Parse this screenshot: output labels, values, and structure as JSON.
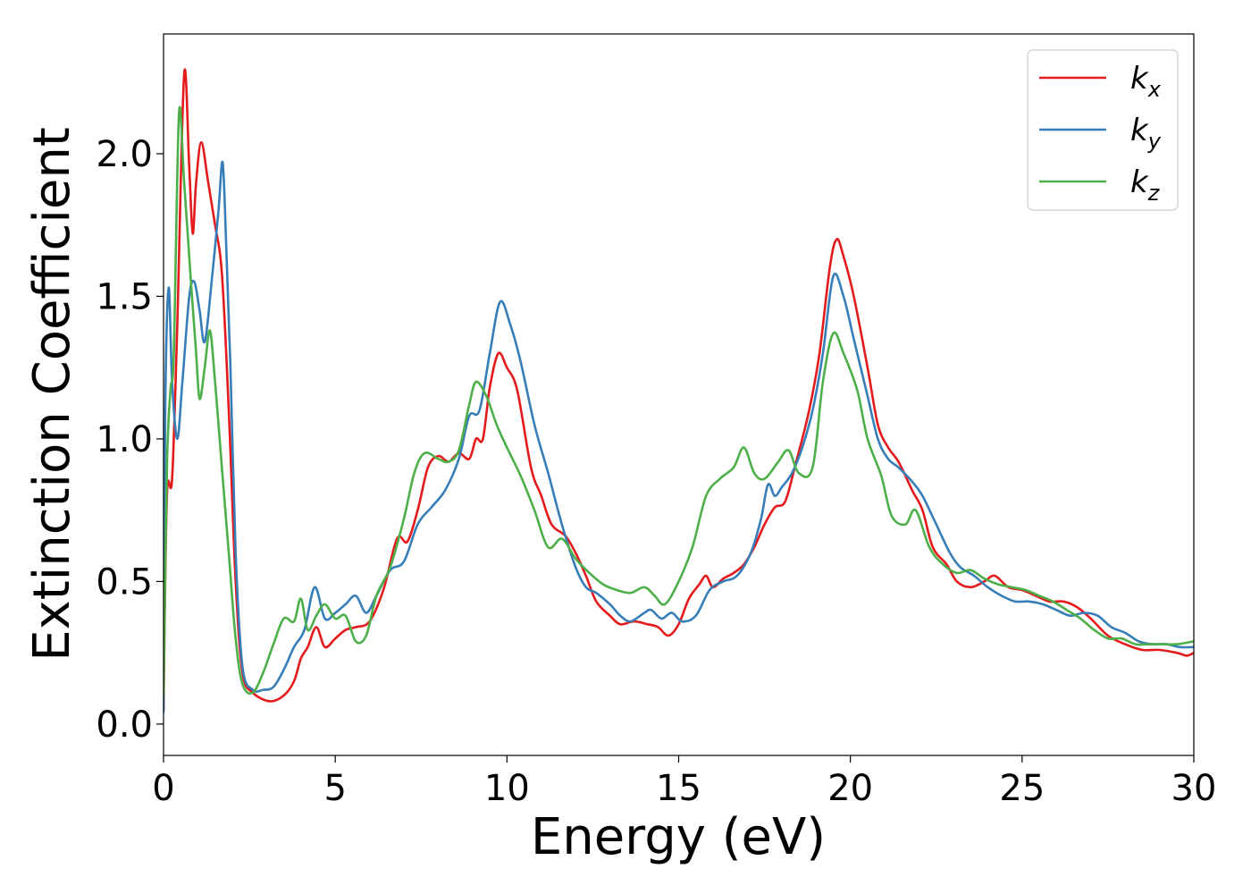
{
  "chart_data": {
    "type": "line",
    "title": "",
    "xlabel": "Energy (eV)",
    "ylabel": "Extinction Coefficient",
    "xlim": [
      0,
      30
    ],
    "ylim": [
      -0.11,
      2.42
    ],
    "xticks": [
      0,
      5,
      10,
      15,
      20,
      25,
      30
    ],
    "xtick_labels": [
      "0",
      "5",
      "10",
      "15",
      "20",
      "25",
      "30"
    ],
    "yticks": [
      0.0,
      0.5,
      1.0,
      1.5,
      2.0
    ],
    "ytick_labels": [
      "0.0",
      "0.5",
      "1.0",
      "1.5",
      "2.0"
    ],
    "grid": false,
    "legend_position": "top-right",
    "series": [
      {
        "name": "k",
        "subscript": "x",
        "color": "#e41a1c",
        "points": [
          [
            0,
            0.05
          ],
          [
            0.1,
            0.8
          ],
          [
            0.25,
            0.86
          ],
          [
            0.4,
            1.4
          ],
          [
            0.6,
            2.28
          ],
          [
            0.75,
            1.95
          ],
          [
            0.85,
            1.72
          ],
          [
            0.95,
            1.9
          ],
          [
            1.1,
            2.04
          ],
          [
            1.3,
            1.9
          ],
          [
            1.5,
            1.75
          ],
          [
            1.7,
            1.58
          ],
          [
            1.9,
            1.1
          ],
          [
            2.1,
            0.5
          ],
          [
            2.3,
            0.18
          ],
          [
            2.6,
            0.11
          ],
          [
            3.1,
            0.08
          ],
          [
            3.5,
            0.1
          ],
          [
            3.8,
            0.15
          ],
          [
            4.0,
            0.23
          ],
          [
            4.2,
            0.27
          ],
          [
            4.45,
            0.34
          ],
          [
            4.7,
            0.27
          ],
          [
            5.0,
            0.3
          ],
          [
            5.3,
            0.33
          ],
          [
            5.6,
            0.34
          ],
          [
            6.0,
            0.36
          ],
          [
            6.4,
            0.47
          ],
          [
            6.8,
            0.65
          ],
          [
            7.1,
            0.64
          ],
          [
            7.4,
            0.75
          ],
          [
            7.7,
            0.9
          ],
          [
            8.0,
            0.94
          ],
          [
            8.3,
            0.92
          ],
          [
            8.6,
            0.95
          ],
          [
            8.9,
            0.93
          ],
          [
            9.1,
            1.0
          ],
          [
            9.3,
            1.0
          ],
          [
            9.5,
            1.18
          ],
          [
            9.75,
            1.3
          ],
          [
            10.0,
            1.25
          ],
          [
            10.3,
            1.17
          ],
          [
            10.7,
            0.9
          ],
          [
            11.0,
            0.8
          ],
          [
            11.3,
            0.7
          ],
          [
            11.7,
            0.66
          ],
          [
            12.0,
            0.6
          ],
          [
            12.3,
            0.52
          ],
          [
            12.6,
            0.43
          ],
          [
            13.0,
            0.38
          ],
          [
            13.3,
            0.35
          ],
          [
            13.7,
            0.36
          ],
          [
            14.1,
            0.35
          ],
          [
            14.4,
            0.34
          ],
          [
            14.7,
            0.31
          ],
          [
            15.0,
            0.35
          ],
          [
            15.3,
            0.44
          ],
          [
            15.6,
            0.49
          ],
          [
            15.8,
            0.52
          ],
          [
            16.0,
            0.48
          ],
          [
            16.3,
            0.51
          ],
          [
            16.6,
            0.53
          ],
          [
            16.9,
            0.56
          ],
          [
            17.2,
            0.62
          ],
          [
            17.5,
            0.7
          ],
          [
            17.8,
            0.76
          ],
          [
            18.1,
            0.78
          ],
          [
            18.4,
            0.91
          ],
          [
            18.8,
            1.1
          ],
          [
            19.1,
            1.3
          ],
          [
            19.4,
            1.6
          ],
          [
            19.6,
            1.7
          ],
          [
            19.8,
            1.64
          ],
          [
            20.1,
            1.5
          ],
          [
            20.5,
            1.25
          ],
          [
            20.8,
            1.05
          ],
          [
            21.1,
            0.97
          ],
          [
            21.4,
            0.92
          ],
          [
            21.8,
            0.82
          ],
          [
            22.1,
            0.75
          ],
          [
            22.4,
            0.62
          ],
          [
            22.8,
            0.56
          ],
          [
            23.1,
            0.5
          ],
          [
            23.5,
            0.48
          ],
          [
            23.9,
            0.5
          ],
          [
            24.2,
            0.52
          ],
          [
            24.6,
            0.48
          ],
          [
            25.0,
            0.47
          ],
          [
            25.4,
            0.45
          ],
          [
            25.8,
            0.43
          ],
          [
            26.2,
            0.43
          ],
          [
            26.6,
            0.41
          ],
          [
            27.0,
            0.37
          ],
          [
            27.5,
            0.31
          ],
          [
            28.0,
            0.28
          ],
          [
            28.5,
            0.26
          ],
          [
            29.0,
            0.26
          ],
          [
            29.5,
            0.25
          ],
          [
            29.8,
            0.24
          ],
          [
            30.0,
            0.25
          ]
        ]
      },
      {
        "name": "k",
        "subscript": "y",
        "color": "#377eb8",
        "points": [
          [
            0,
            0.04
          ],
          [
            0.05,
            1.1
          ],
          [
            0.15,
            1.53
          ],
          [
            0.25,
            1.2
          ],
          [
            0.4,
            1.0
          ],
          [
            0.55,
            1.2
          ],
          [
            0.75,
            1.5
          ],
          [
            0.9,
            1.55
          ],
          [
            1.05,
            1.45
          ],
          [
            1.2,
            1.34
          ],
          [
            1.4,
            1.55
          ],
          [
            1.6,
            1.8
          ],
          [
            1.72,
            1.97
          ],
          [
            1.82,
            1.7
          ],
          [
            1.95,
            1.25
          ],
          [
            2.1,
            0.6
          ],
          [
            2.3,
            0.2
          ],
          [
            2.6,
            0.12
          ],
          [
            2.9,
            0.12
          ],
          [
            3.2,
            0.13
          ],
          [
            3.5,
            0.19
          ],
          [
            3.8,
            0.27
          ],
          [
            4.1,
            0.33
          ],
          [
            4.4,
            0.48
          ],
          [
            4.7,
            0.37
          ],
          [
            5.0,
            0.39
          ],
          [
            5.3,
            0.42
          ],
          [
            5.6,
            0.45
          ],
          [
            5.9,
            0.39
          ],
          [
            6.2,
            0.45
          ],
          [
            6.6,
            0.54
          ],
          [
            7.0,
            0.57
          ],
          [
            7.4,
            0.7
          ],
          [
            7.8,
            0.76
          ],
          [
            8.2,
            0.82
          ],
          [
            8.6,
            0.93
          ],
          [
            8.9,
            1.08
          ],
          [
            9.2,
            1.1
          ],
          [
            9.5,
            1.3
          ],
          [
            9.8,
            1.48
          ],
          [
            10.1,
            1.4
          ],
          [
            10.4,
            1.27
          ],
          [
            10.8,
            1.05
          ],
          [
            11.2,
            0.88
          ],
          [
            11.6,
            0.7
          ],
          [
            12.0,
            0.55
          ],
          [
            12.3,
            0.48
          ],
          [
            12.6,
            0.46
          ],
          [
            13.0,
            0.42
          ],
          [
            13.3,
            0.38
          ],
          [
            13.6,
            0.36
          ],
          [
            14.0,
            0.39
          ],
          [
            14.2,
            0.4
          ],
          [
            14.5,
            0.37
          ],
          [
            14.8,
            0.39
          ],
          [
            15.1,
            0.36
          ],
          [
            15.5,
            0.38
          ],
          [
            15.9,
            0.47
          ],
          [
            16.3,
            0.5
          ],
          [
            16.7,
            0.52
          ],
          [
            17.1,
            0.6
          ],
          [
            17.4,
            0.72
          ],
          [
            17.6,
            0.84
          ],
          [
            17.8,
            0.8
          ],
          [
            18.0,
            0.83
          ],
          [
            18.3,
            0.88
          ],
          [
            18.6,
            0.97
          ],
          [
            18.9,
            1.1
          ],
          [
            19.2,
            1.3
          ],
          [
            19.5,
            1.57
          ],
          [
            19.8,
            1.5
          ],
          [
            20.1,
            1.35
          ],
          [
            20.5,
            1.15
          ],
          [
            20.8,
            1.0
          ],
          [
            21.1,
            0.93
          ],
          [
            21.4,
            0.9
          ],
          [
            21.8,
            0.85
          ],
          [
            22.1,
            0.8
          ],
          [
            22.5,
            0.7
          ],
          [
            22.9,
            0.6
          ],
          [
            23.2,
            0.55
          ],
          [
            23.6,
            0.52
          ],
          [
            24.0,
            0.48
          ],
          [
            24.4,
            0.45
          ],
          [
            24.8,
            0.43
          ],
          [
            25.2,
            0.43
          ],
          [
            25.6,
            0.42
          ],
          [
            26.0,
            0.4
          ],
          [
            26.4,
            0.38
          ],
          [
            26.8,
            0.39
          ],
          [
            27.2,
            0.38
          ],
          [
            27.6,
            0.34
          ],
          [
            28.0,
            0.32
          ],
          [
            28.4,
            0.29
          ],
          [
            28.8,
            0.28
          ],
          [
            29.2,
            0.28
          ],
          [
            29.6,
            0.27
          ],
          [
            30.0,
            0.27
          ]
        ]
      },
      {
        "name": "k",
        "subscript": "z",
        "color": "#4daf4a",
        "points": [
          [
            0,
            0.1
          ],
          [
            0.1,
            0.9
          ],
          [
            0.2,
            1.17
          ],
          [
            0.3,
            1.3
          ],
          [
            0.45,
            2.14
          ],
          [
            0.6,
            1.9
          ],
          [
            0.8,
            1.55
          ],
          [
            0.95,
            1.3
          ],
          [
            1.05,
            1.14
          ],
          [
            1.2,
            1.25
          ],
          [
            1.35,
            1.38
          ],
          [
            1.5,
            1.2
          ],
          [
            1.7,
            0.9
          ],
          [
            1.9,
            0.6
          ],
          [
            2.1,
            0.3
          ],
          [
            2.3,
            0.14
          ],
          [
            2.6,
            0.11
          ],
          [
            2.9,
            0.18
          ],
          [
            3.2,
            0.28
          ],
          [
            3.5,
            0.37
          ],
          [
            3.8,
            0.36
          ],
          [
            4.0,
            0.44
          ],
          [
            4.2,
            0.33
          ],
          [
            4.45,
            0.38
          ],
          [
            4.7,
            0.42
          ],
          [
            5.0,
            0.37
          ],
          [
            5.3,
            0.38
          ],
          [
            5.6,
            0.29
          ],
          [
            5.9,
            0.31
          ],
          [
            6.2,
            0.45
          ],
          [
            6.6,
            0.55
          ],
          [
            7.0,
            0.72
          ],
          [
            7.3,
            0.88
          ],
          [
            7.6,
            0.95
          ],
          [
            8.0,
            0.93
          ],
          [
            8.3,
            0.92
          ],
          [
            8.6,
            0.96
          ],
          [
            8.9,
            1.12
          ],
          [
            9.1,
            1.2
          ],
          [
            9.4,
            1.15
          ],
          [
            9.7,
            1.05
          ],
          [
            10.0,
            0.97
          ],
          [
            10.4,
            0.87
          ],
          [
            10.8,
            0.75
          ],
          [
            11.2,
            0.62
          ],
          [
            11.6,
            0.65
          ],
          [
            12.0,
            0.58
          ],
          [
            12.4,
            0.53
          ],
          [
            12.8,
            0.49
          ],
          [
            13.2,
            0.47
          ],
          [
            13.6,
            0.46
          ],
          [
            14.0,
            0.48
          ],
          [
            14.3,
            0.45
          ],
          [
            14.6,
            0.42
          ],
          [
            15.0,
            0.5
          ],
          [
            15.4,
            0.62
          ],
          [
            15.8,
            0.8
          ],
          [
            16.2,
            0.86
          ],
          [
            16.6,
            0.9
          ],
          [
            16.9,
            0.97
          ],
          [
            17.2,
            0.88
          ],
          [
            17.5,
            0.86
          ],
          [
            17.9,
            0.92
          ],
          [
            18.2,
            0.96
          ],
          [
            18.5,
            0.88
          ],
          [
            18.9,
            0.9
          ],
          [
            19.2,
            1.2
          ],
          [
            19.5,
            1.37
          ],
          [
            19.8,
            1.3
          ],
          [
            20.2,
            1.17
          ],
          [
            20.5,
            1.0
          ],
          [
            20.9,
            0.87
          ],
          [
            21.2,
            0.73
          ],
          [
            21.6,
            0.7
          ],
          [
            21.9,
            0.75
          ],
          [
            22.3,
            0.62
          ],
          [
            22.7,
            0.56
          ],
          [
            23.1,
            0.53
          ],
          [
            23.5,
            0.54
          ],
          [
            23.9,
            0.51
          ],
          [
            24.3,
            0.49
          ],
          [
            24.7,
            0.48
          ],
          [
            25.1,
            0.47
          ],
          [
            25.5,
            0.45
          ],
          [
            25.9,
            0.43
          ],
          [
            26.3,
            0.4
          ],
          [
            26.7,
            0.37
          ],
          [
            27.1,
            0.33
          ],
          [
            27.5,
            0.3
          ],
          [
            27.9,
            0.3
          ],
          [
            28.3,
            0.28
          ],
          [
            28.7,
            0.28
          ],
          [
            29.1,
            0.28
          ],
          [
            29.5,
            0.28
          ],
          [
            30.0,
            0.29
          ]
        ]
      }
    ]
  }
}
